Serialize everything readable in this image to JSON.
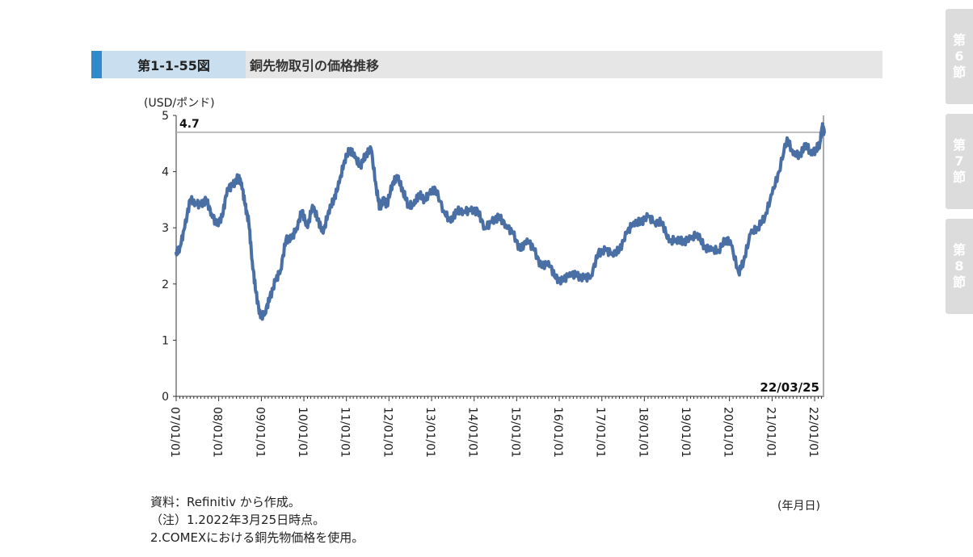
{
  "header": {
    "figure_number": "第1-1-55図",
    "title": "銅先物取引の価格推移"
  },
  "side_tabs": [
    {
      "label": [
        "第",
        "6",
        "節"
      ]
    },
    {
      "label": [
        "第",
        "7",
        "節"
      ]
    },
    {
      "label": [
        "第",
        "8",
        "節"
      ]
    }
  ],
  "footer": {
    "source": "資料：Refinitiv から作成。",
    "note1": "（注）1.2022年3月25日時点。",
    "note2": "2.COMEXにおける銅先物価格を使用。",
    "date_unit": "(年月日)"
  },
  "colors": {
    "series": "#4a6fa5",
    "reference_line": "#aaaaaa",
    "title_accent": "#2f8bc9",
    "figure_number_bg": "#c9dff0",
    "title_bg": "#e6e6e6",
    "side_tab_bg": "#dcdcdc"
  },
  "chart_data": {
    "type": "line",
    "title": "銅先物取引の価格推移",
    "ylabel": "(USD/ポンド)",
    "xlabel": "(年月日)",
    "ylim": [
      0,
      5
    ],
    "yticks": [
      0,
      1,
      2,
      3,
      4,
      5
    ],
    "xlim": [
      "2007-01-01",
      "2022-03-25"
    ],
    "xtick_labels": [
      "07/01/01",
      "08/01/01",
      "09/01/01",
      "10/01/01",
      "11/01/01",
      "12/01/01",
      "13/01/01",
      "14/01/01",
      "15/01/01",
      "16/01/01",
      "17/01/01",
      "18/01/01",
      "19/01/01",
      "20/01/01",
      "21/01/01",
      "22/01/01"
    ],
    "grid": false,
    "reference_line": {
      "value": 4.7,
      "label": "4.7"
    },
    "end_label": "22/03/25",
    "series": [
      {
        "x": [
          "2007-01-01",
          "2007-02-01",
          "2007-03-15",
          "2007-05-01",
          "2007-06-15",
          "2007-08-01",
          "2007-09-15",
          "2007-11-01",
          "2007-12-15",
          "2008-02-01",
          "2008-03-15",
          "2008-05-01",
          "2008-06-15",
          "2008-07-15",
          "2008-08-15",
          "2008-09-15",
          "2008-10-15",
          "2008-11-15",
          "2008-12-25",
          "2009-02-01",
          "2009-03-15",
          "2009-05-01",
          "2009-06-15",
          "2009-08-01",
          "2009-09-15",
          "2009-11-01",
          "2009-12-15",
          "2010-02-01",
          "2010-03-15",
          "2010-05-01",
          "2010-06-15",
          "2010-08-01",
          "2010-09-15",
          "2010-11-01",
          "2010-12-15",
          "2011-02-01",
          "2011-03-15",
          "2011-05-01",
          "2011-06-15",
          "2011-08-01",
          "2011-09-15",
          "2011-10-15",
          "2011-11-15",
          "2011-12-15",
          "2012-02-01",
          "2012-03-15",
          "2012-05-01",
          "2012-06-15",
          "2012-08-01",
          "2012-09-15",
          "2012-11-01",
          "2012-12-15",
          "2013-02-01",
          "2013-04-15",
          "2013-06-15",
          "2013-08-01",
          "2013-10-01",
          "2013-12-01",
          "2014-02-01",
          "2014-04-01",
          "2014-06-01",
          "2014-08-01",
          "2014-10-01",
          "2014-12-01",
          "2015-02-01",
          "2015-04-01",
          "2015-06-01",
          "2015-08-01",
          "2015-10-01",
          "2015-12-01",
          "2016-02-01",
          "2016-04-01",
          "2016-06-01",
          "2016-08-01",
          "2016-10-01",
          "2016-12-01",
          "2017-02-01",
          "2017-04-01",
          "2017-06-01",
          "2017-08-01",
          "2017-10-01",
          "2017-12-01",
          "2018-02-01",
          "2018-04-01",
          "2018-06-01",
          "2018-08-01",
          "2018-10-01",
          "2018-12-01",
          "2019-02-01",
          "2019-04-01",
          "2019-06-01",
          "2019-08-01",
          "2019-10-01",
          "2019-12-01",
          "2020-01-15",
          "2020-03-20",
          "2020-05-01",
          "2020-07-01",
          "2020-09-01",
          "2020-11-01",
          "2021-01-01",
          "2021-03-01",
          "2021-05-10",
          "2021-07-01",
          "2021-09-01",
          "2021-10-20",
          "2021-12-01",
          "2022-01-15",
          "2022-02-15",
          "2022-03-07",
          "2022-03-25"
        ],
        "values": [
          2.55,
          2.65,
          3.0,
          3.5,
          3.45,
          3.4,
          3.5,
          3.25,
          3.05,
          3.2,
          3.7,
          3.75,
          3.9,
          3.8,
          3.4,
          3.1,
          2.4,
          1.85,
          1.4,
          1.5,
          1.75,
          2.05,
          2.25,
          2.8,
          2.8,
          3.0,
          3.3,
          3.0,
          3.4,
          3.15,
          2.9,
          3.3,
          3.5,
          3.8,
          4.2,
          4.4,
          4.25,
          4.1,
          4.3,
          4.4,
          3.7,
          3.35,
          3.5,
          3.4,
          3.8,
          3.9,
          3.65,
          3.4,
          3.4,
          3.6,
          3.5,
          3.6,
          3.7,
          3.3,
          3.1,
          3.3,
          3.3,
          3.3,
          3.3,
          3.0,
          3.1,
          3.2,
          3.05,
          2.9,
          2.6,
          2.8,
          2.6,
          2.3,
          2.4,
          2.1,
          2.05,
          2.2,
          2.15,
          2.1,
          2.15,
          2.55,
          2.6,
          2.55,
          2.6,
          2.9,
          3.1,
          3.1,
          3.2,
          3.1,
          3.1,
          2.75,
          2.8,
          2.75,
          2.8,
          2.9,
          2.65,
          2.6,
          2.6,
          2.8,
          2.7,
          2.2,
          2.4,
          2.9,
          3.0,
          3.2,
          3.6,
          4.0,
          4.6,
          4.3,
          4.3,
          4.5,
          4.3,
          4.4,
          4.5,
          4.8,
          4.7
        ]
      }
    ]
  }
}
